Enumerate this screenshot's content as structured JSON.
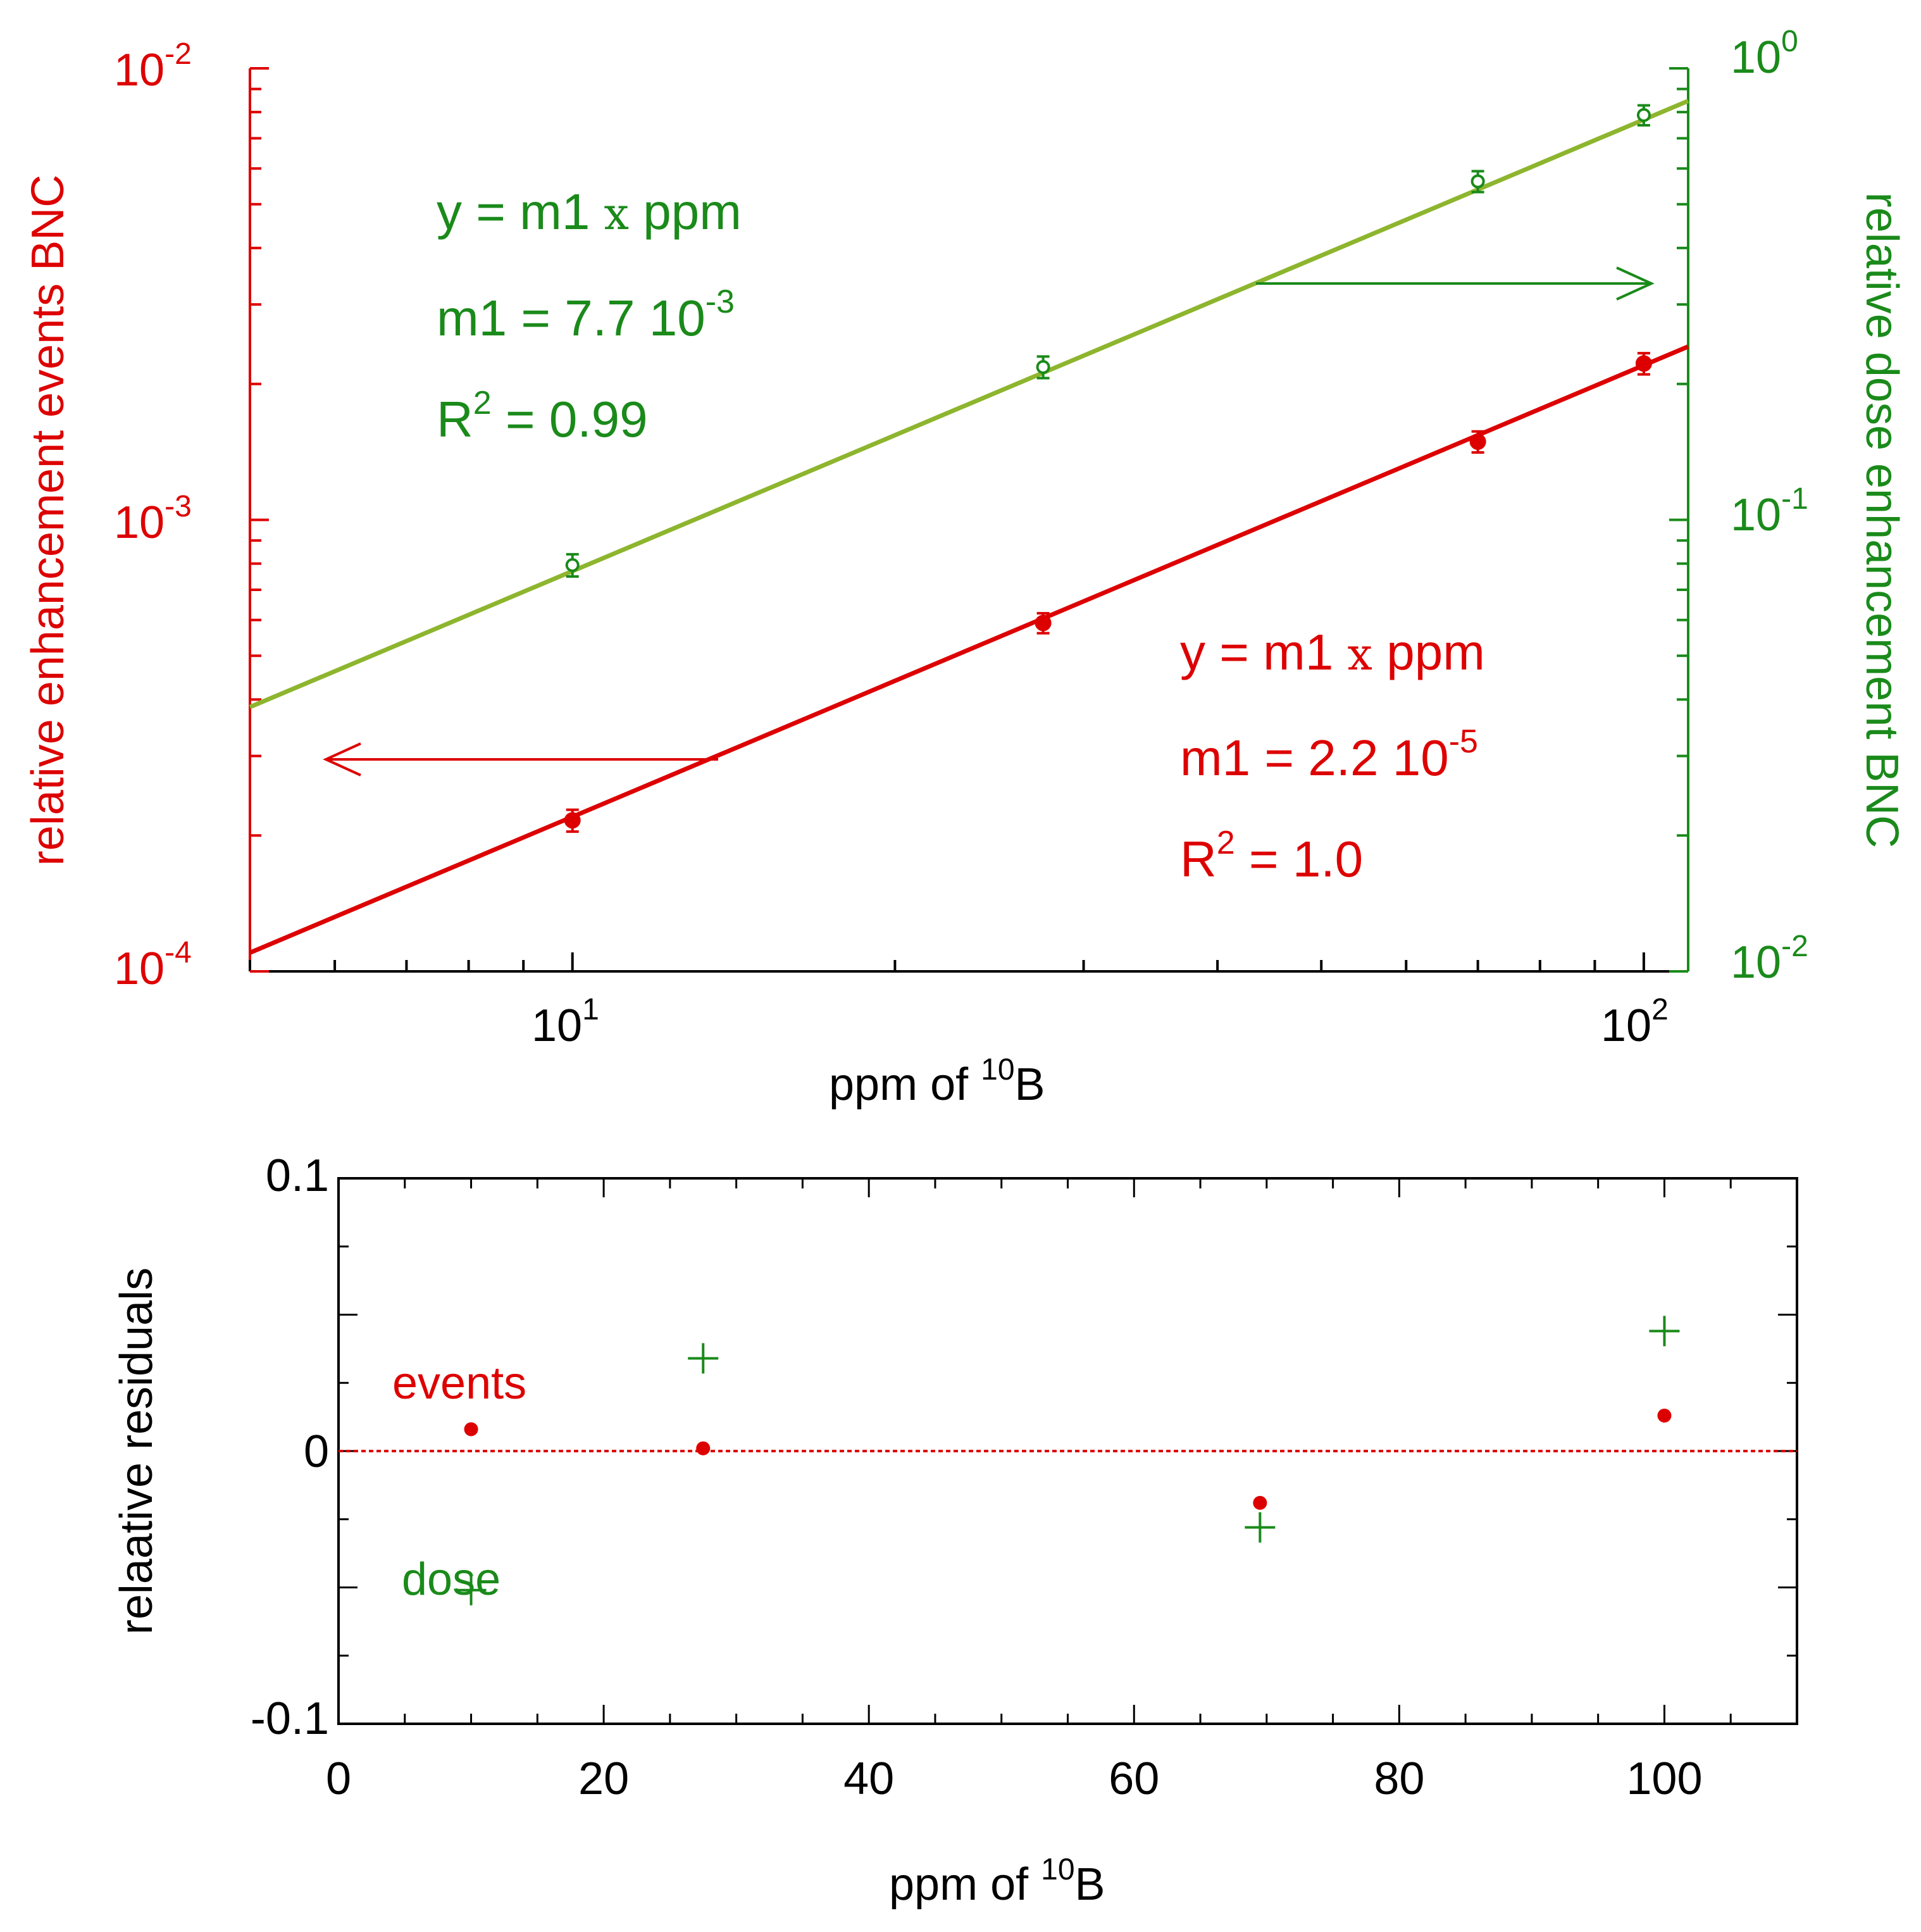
{
  "colors": {
    "events": "#dd0000",
    "dose_text": "#1a8a1a",
    "dose_line": "#8db52e",
    "axis": "#000000"
  },
  "chart_data": [
    {
      "type": "scatter",
      "subtype": "log-log with fitted lines, dual y-axis",
      "xlabel": "ppm of ",
      "xlabel_sup": "10",
      "xlabel_tail": "B",
      "xlim": [
        5,
        110
      ],
      "x_ticks": [
        {
          "base": "10",
          "exp": "1",
          "value": 10
        },
        {
          "base": "10",
          "exp": "2",
          "value": 100
        }
      ],
      "y_left": {
        "label": "relative enhancement events BNC",
        "lim": [
          0.0001,
          0.01
        ],
        "ticks": [
          {
            "base": "10",
            "exp": "-2",
            "value": 0.01
          },
          {
            "base": "10",
            "exp": "-3",
            "value": 0.001
          },
          {
            "base": "10",
            "exp": "-4",
            "value": 0.0001
          }
        ]
      },
      "y_right": {
        "label": "relative dose enhancement BNC",
        "lim": [
          0.01,
          1
        ],
        "ticks": [
          {
            "base": "10",
            "exp": "0",
            "value": 1
          },
          {
            "base": "10",
            "exp": "-1",
            "value": 0.1
          },
          {
            "base": "10",
            "exp": "-2",
            "value": 0.01
          }
        ]
      },
      "series": [
        {
          "name": "events",
          "axis": "left",
          "marker": "filled-circle",
          "x": [
            10,
            27.5,
            70,
            100
          ],
          "y": [
            0.000216,
            0.000591,
            0.00149,
            0.00222
          ],
          "err": [
            1.2e-05,
            3e-05,
            8e-05,
            0.00012
          ],
          "fit": {
            "m": 2.2e-05
          }
        },
        {
          "name": "dose",
          "axis": "right",
          "marker": "open-circle",
          "x": [
            10,
            27.5,
            70,
            100
          ],
          "y": [
            0.0794,
            0.218,
            0.562,
            0.788
          ],
          "err": [
            0.0045,
            0.012,
            0.03,
            0.04
          ],
          "fit": {
            "m": 0.0077
          }
        }
      ],
      "annotations": {
        "dose": {
          "line1": "y = m1 ",
          "times": "x",
          "line1_tail": " ppm",
          "m1_prefix": "m1 = 7.7 10",
          "m1_exp": "-3",
          "r2_prefix": "R",
          "r2_exp": "2",
          "r2_tail": " = 0.99"
        },
        "events": {
          "line1": "y = m1 ",
          "times": "x",
          "line1_tail": " ppm",
          "m1_prefix": "m1 = 2.2 10",
          "m1_exp": "-5",
          "r2_prefix": "R",
          "r2_exp": "2",
          "r2_tail": " = 1.0"
        }
      }
    },
    {
      "type": "scatter",
      "subtype": "residuals",
      "xlabel": "ppm of ",
      "xlabel_sup": "10",
      "xlabel_tail": "B",
      "ylabel": "relaative residuals",
      "xlim": [
        0,
        110
      ],
      "ylim": [
        -0.1,
        0.1
      ],
      "x_ticks": [
        0,
        20,
        40,
        60,
        80,
        100
      ],
      "x_tick_labels": [
        "0",
        "20",
        "40",
        "60",
        "80",
        "100"
      ],
      "y_ticks": [
        0.1,
        0,
        -0.1
      ],
      "y_tick_labels": [
        "0.1",
        "0",
        "-0.1"
      ],
      "zero_line": true,
      "series": [
        {
          "name": "events",
          "marker": "filled-circle",
          "x": [
            10,
            27.5,
            69.5,
            100
          ],
          "y": [
            0.008,
            0.001,
            -0.019,
            0.013
          ]
        },
        {
          "name": "dose",
          "marker": "plus",
          "x": [
            10,
            27.5,
            69.5,
            100
          ],
          "y": [
            -0.051,
            0.034,
            -0.028,
            0.044
          ]
        }
      ],
      "legend": {
        "events": "events",
        "dose": "dose"
      }
    }
  ]
}
